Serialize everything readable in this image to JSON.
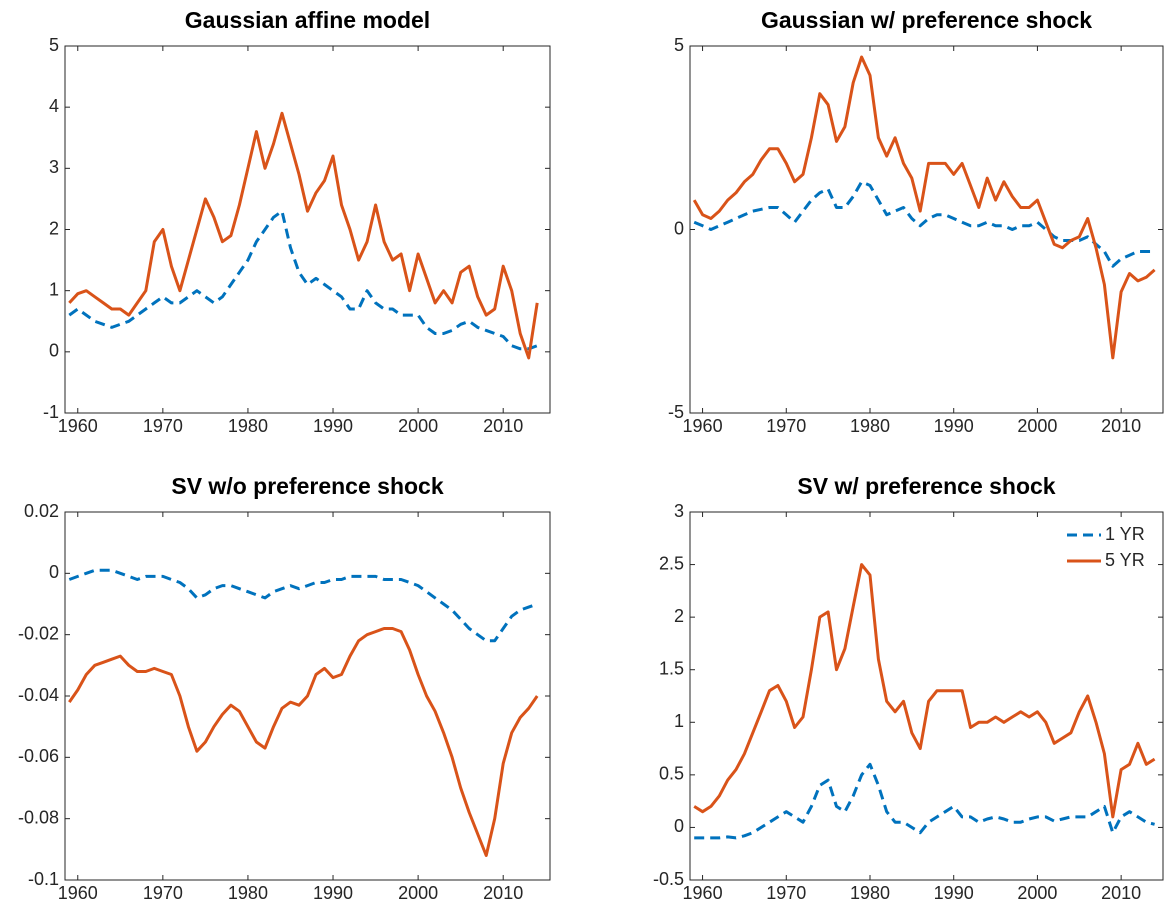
{
  "chart_data": [
    {
      "type": "line",
      "title": "Gaussian affine model",
      "x": [
        1959,
        1960,
        1961,
        1962,
        1963,
        1964,
        1965,
        1966,
        1967,
        1968,
        1969,
        1970,
        1971,
        1972,
        1973,
        1974,
        1975,
        1976,
        1977,
        1978,
        1979,
        1980,
        1981,
        1982,
        1983,
        1984,
        1985,
        1986,
        1987,
        1988,
        1989,
        1990,
        1991,
        1992,
        1993,
        1994,
        1995,
        1996,
        1997,
        1998,
        1999,
        2000,
        2001,
        2002,
        2003,
        2004,
        2005,
        2006,
        2007,
        2008,
        2009,
        2010,
        2011,
        2012,
        2013,
        2014
      ],
      "series": [
        {
          "color": "#0072BD",
          "line_style": "dashed",
          "values": [
            0.6,
            0.7,
            0.6,
            0.5,
            0.45,
            0.4,
            0.45,
            0.5,
            0.6,
            0.7,
            0.8,
            0.9,
            0.8,
            0.8,
            0.9,
            1.0,
            0.9,
            0.8,
            0.9,
            1.1,
            1.3,
            1.5,
            1.8,
            2.0,
            2.2,
            2.3,
            1.7,
            1.3,
            1.1,
            1.2,
            1.1,
            1.0,
            0.9,
            0.7,
            0.7,
            1.0,
            0.8,
            0.7,
            0.7,
            0.6,
            0.6,
            0.6,
            0.4,
            0.3,
            0.3,
            0.35,
            0.45,
            0.5,
            0.4,
            0.35,
            0.3,
            0.25,
            0.1,
            0.05,
            0.05,
            0.1
          ]
        },
        {
          "color": "#D95319",
          "line_style": "solid",
          "values": [
            0.8,
            0.95,
            1.0,
            0.9,
            0.8,
            0.7,
            0.7,
            0.6,
            0.8,
            1.0,
            1.8,
            2.0,
            1.4,
            1.0,
            1.5,
            2.0,
            2.5,
            2.2,
            1.8,
            1.9,
            2.4,
            3.0,
            3.6,
            3.0,
            3.4,
            3.9,
            3.4,
            2.9,
            2.3,
            2.6,
            2.8,
            3.2,
            2.4,
            2.0,
            1.5,
            1.8,
            2.4,
            1.8,
            1.5,
            1.6,
            1.0,
            1.6,
            1.2,
            0.8,
            1.0,
            0.8,
            1.3,
            1.4,
            0.9,
            0.6,
            0.7,
            1.4,
            1.0,
            0.3,
            -0.1,
            0.8
          ]
        }
      ],
      "xlim": [
        1958.5,
        2015.5
      ],
      "xticks": [
        1960,
        1970,
        1980,
        1990,
        2000,
        2010
      ],
      "ylim": [
        -1,
        5
      ],
      "yticks": [
        -1,
        0,
        1,
        2,
        3,
        4,
        5
      ]
    },
    {
      "type": "line",
      "title": "Gaussian w/ preference shock",
      "x": [
        1959,
        1960,
        1961,
        1962,
        1963,
        1964,
        1965,
        1966,
        1967,
        1968,
        1969,
        1970,
        1971,
        1972,
        1973,
        1974,
        1975,
        1976,
        1977,
        1978,
        1979,
        1980,
        1981,
        1982,
        1983,
        1984,
        1985,
        1986,
        1987,
        1988,
        1989,
        1990,
        1991,
        1992,
        1993,
        1994,
        1995,
        1996,
        1997,
        1998,
        1999,
        2000,
        2001,
        2002,
        2003,
        2004,
        2005,
        2006,
        2007,
        2008,
        2009,
        2010,
        2011,
        2012,
        2013,
        2014
      ],
      "series": [
        {
          "color": "#0072BD",
          "line_style": "dashed",
          "values": [
            0.2,
            0.1,
            0.0,
            0.1,
            0.2,
            0.3,
            0.4,
            0.5,
            0.55,
            0.6,
            0.6,
            0.4,
            0.2,
            0.5,
            0.8,
            1.0,
            1.1,
            0.6,
            0.6,
            0.9,
            1.3,
            1.2,
            0.8,
            0.4,
            0.5,
            0.6,
            0.3,
            0.1,
            0.3,
            0.4,
            0.4,
            0.3,
            0.2,
            0.1,
            0.1,
            0.2,
            0.1,
            0.1,
            0.0,
            0.1,
            0.1,
            0.2,
            0.0,
            -0.2,
            -0.3,
            -0.3,
            -0.3,
            -0.2,
            -0.4,
            -0.6,
            -1.0,
            -0.8,
            -0.7,
            -0.6,
            -0.6,
            -0.6
          ]
        },
        {
          "color": "#D95319",
          "line_style": "solid",
          "values": [
            0.8,
            0.4,
            0.3,
            0.5,
            0.8,
            1.0,
            1.3,
            1.5,
            1.9,
            2.2,
            2.2,
            1.8,
            1.3,
            1.5,
            2.5,
            3.7,
            3.4,
            2.4,
            2.8,
            4.0,
            4.7,
            4.2,
            2.5,
            2.0,
            2.5,
            1.8,
            1.4,
            0.5,
            1.8,
            1.8,
            1.8,
            1.5,
            1.8,
            1.2,
            0.6,
            1.4,
            0.8,
            1.3,
            0.9,
            0.6,
            0.6,
            0.8,
            0.2,
            -0.4,
            -0.5,
            -0.3,
            -0.2,
            0.3,
            -0.5,
            -1.5,
            -3.5,
            -1.7,
            -1.2,
            -1.4,
            -1.3,
            -1.1
          ]
        }
      ],
      "xlim": [
        1958.5,
        2015
      ],
      "xticks": [
        1960,
        1970,
        1980,
        1990,
        2000,
        2010
      ],
      "ylim": [
        -5,
        5
      ],
      "yticks": [
        -5,
        0,
        5
      ]
    },
    {
      "type": "line",
      "title": "SV w/o preference shock",
      "x": [
        1959,
        1960,
        1961,
        1962,
        1963,
        1964,
        1965,
        1966,
        1967,
        1968,
        1969,
        1970,
        1971,
        1972,
        1973,
        1974,
        1975,
        1976,
        1977,
        1978,
        1979,
        1980,
        1981,
        1982,
        1983,
        1984,
        1985,
        1986,
        1987,
        1988,
        1989,
        1990,
        1991,
        1992,
        1993,
        1994,
        1995,
        1996,
        1997,
        1998,
        1999,
        2000,
        2001,
        2002,
        2003,
        2004,
        2005,
        2006,
        2007,
        2008,
        2009,
        2010,
        2011,
        2012,
        2013,
        2014
      ],
      "series": [
        {
          "color": "#0072BD",
          "line_style": "dashed",
          "values": [
            -0.002,
            -0.001,
            0,
            0.001,
            0.001,
            0.001,
            0,
            -0.001,
            -0.002,
            -0.001,
            -0.001,
            -0.001,
            -0.002,
            -0.003,
            -0.005,
            -0.008,
            -0.007,
            -0.005,
            -0.004,
            -0.004,
            -0.005,
            -0.006,
            -0.007,
            -0.008,
            -0.006,
            -0.005,
            -0.004,
            -0.005,
            -0.004,
            -0.003,
            -0.003,
            -0.002,
            -0.002,
            -0.001,
            -0.001,
            -0.001,
            -0.001,
            -0.002,
            -0.002,
            -0.002,
            -0.003,
            -0.004,
            -0.006,
            -0.008,
            -0.01,
            -0.012,
            -0.015,
            -0.018,
            -0.02,
            -0.022,
            -0.022,
            -0.018,
            -0.014,
            -0.012,
            -0.011,
            -0.01
          ]
        },
        {
          "color": "#D95319",
          "line_style": "solid",
          "values": [
            -0.042,
            -0.038,
            -0.033,
            -0.03,
            -0.029,
            -0.028,
            -0.027,
            -0.03,
            -0.032,
            -0.032,
            -0.031,
            -0.032,
            -0.033,
            -0.04,
            -0.05,
            -0.058,
            -0.055,
            -0.05,
            -0.046,
            -0.043,
            -0.045,
            -0.05,
            -0.055,
            -0.057,
            -0.05,
            -0.044,
            -0.042,
            -0.043,
            -0.04,
            -0.033,
            -0.031,
            -0.034,
            -0.033,
            -0.027,
            -0.022,
            -0.02,
            -0.019,
            -0.018,
            -0.018,
            -0.019,
            -0.025,
            -0.033,
            -0.04,
            -0.045,
            -0.052,
            -0.06,
            -0.07,
            -0.078,
            -0.085,
            -0.092,
            -0.08,
            -0.062,
            -0.052,
            -0.047,
            -0.044,
            -0.04
          ]
        }
      ],
      "xlim": [
        1958.5,
        2015.5
      ],
      "xticks": [
        1960,
        1970,
        1980,
        1990,
        2000,
        2010
      ],
      "ylim": [
        -0.1,
        0.02
      ],
      "yticks": [
        -0.1,
        -0.08,
        -0.06,
        -0.04,
        -0.02,
        0,
        0.02
      ]
    },
    {
      "type": "line",
      "title": "SV w/ preference shock",
      "x": [
        1959,
        1960,
        1961,
        1962,
        1963,
        1964,
        1965,
        1966,
        1967,
        1968,
        1969,
        1970,
        1971,
        1972,
        1973,
        1974,
        1975,
        1976,
        1977,
        1978,
        1979,
        1980,
        1981,
        1982,
        1983,
        1984,
        1985,
        1986,
        1987,
        1988,
        1989,
        1990,
        1991,
        1992,
        1993,
        1994,
        1995,
        1996,
        1997,
        1998,
        1999,
        2000,
        2001,
        2002,
        2003,
        2004,
        2005,
        2006,
        2007,
        2008,
        2009,
        2010,
        2011,
        2012,
        2013,
        2014
      ],
      "series": [
        {
          "name": "1 YR",
          "color": "#0072BD",
          "line_style": "dashed",
          "values": [
            -0.1,
            -0.1,
            -0.1,
            -0.1,
            -0.09,
            -0.1,
            -0.08,
            -0.05,
            0.0,
            0.05,
            0.1,
            0.15,
            0.1,
            0.05,
            0.2,
            0.4,
            0.45,
            0.2,
            0.15,
            0.3,
            0.5,
            0.6,
            0.4,
            0.15,
            0.05,
            0.05,
            0.0,
            -0.05,
            0.05,
            0.1,
            0.15,
            0.2,
            0.1,
            0.1,
            0.05,
            0.08,
            0.1,
            0.08,
            0.05,
            0.05,
            0.08,
            0.1,
            0.1,
            0.06,
            0.08,
            0.1,
            0.1,
            0.1,
            0.15,
            0.2,
            -0.05,
            0.1,
            0.15,
            0.1,
            0.05,
            0.03
          ]
        },
        {
          "name": "5 YR",
          "color": "#D95319",
          "line_style": "solid",
          "values": [
            0.2,
            0.15,
            0.2,
            0.3,
            0.45,
            0.55,
            0.7,
            0.9,
            1.1,
            1.3,
            1.35,
            1.2,
            0.95,
            1.05,
            1.5,
            2.0,
            2.05,
            1.5,
            1.7,
            2.1,
            2.5,
            2.4,
            1.6,
            1.2,
            1.1,
            1.2,
            0.9,
            0.75,
            1.2,
            1.3,
            1.3,
            1.3,
            1.3,
            0.95,
            1.0,
            1.0,
            1.05,
            1.0,
            1.05,
            1.1,
            1.05,
            1.1,
            1.0,
            0.8,
            0.85,
            0.9,
            1.1,
            1.25,
            1.0,
            0.7,
            0.1,
            0.55,
            0.6,
            0.8,
            0.6,
            0.65
          ]
        }
      ],
      "xlim": [
        1958.5,
        2015
      ],
      "xticks": [
        1960,
        1970,
        1980,
        1990,
        2000,
        2010
      ],
      "ylim": [
        -0.5,
        3
      ],
      "yticks": [
        -0.5,
        0,
        0.5,
        1,
        1.5,
        2,
        2.5,
        3
      ],
      "legend": "northeast"
    }
  ]
}
